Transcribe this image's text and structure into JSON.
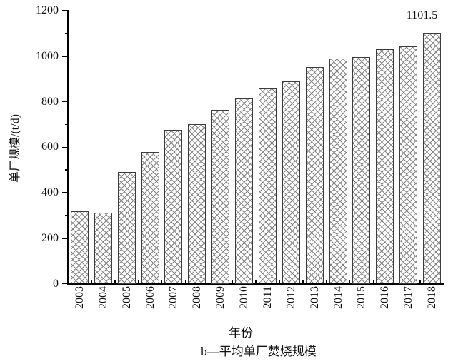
{
  "chart_data": {
    "type": "bar",
    "categories": [
      "2003",
      "2004",
      "2005",
      "2006",
      "2007",
      "2008",
      "2009",
      "2010",
      "2011",
      "2012",
      "2013",
      "2014",
      "2015",
      "2016",
      "2017",
      "2018"
    ],
    "values": [
      318,
      313,
      491,
      578,
      677,
      700,
      764,
      814,
      861,
      889,
      952,
      990,
      996,
      1031,
      1043,
      1101.5
    ],
    "title": "",
    "xlabel": "年份",
    "ylabel": "单厂规模/(t/d)",
    "ylim": [
      0,
      1200
    ],
    "ytick_step": 200,
    "yminor_step": 100,
    "ytick_labels": [
      "0",
      "200",
      "400",
      "600",
      "800",
      "1000",
      "1200"
    ],
    "grid": false,
    "legend_position": "none",
    "annotation": {
      "text": "1101.5",
      "category": "2018"
    },
    "caption": "b—平均单厂焚烧规模",
    "colors": {
      "bar_fill": "#ffffff",
      "bar_hatch": "#828282",
      "bar_border": "#3d3d3d",
      "axis": "#000000",
      "text": "#111111"
    }
  }
}
